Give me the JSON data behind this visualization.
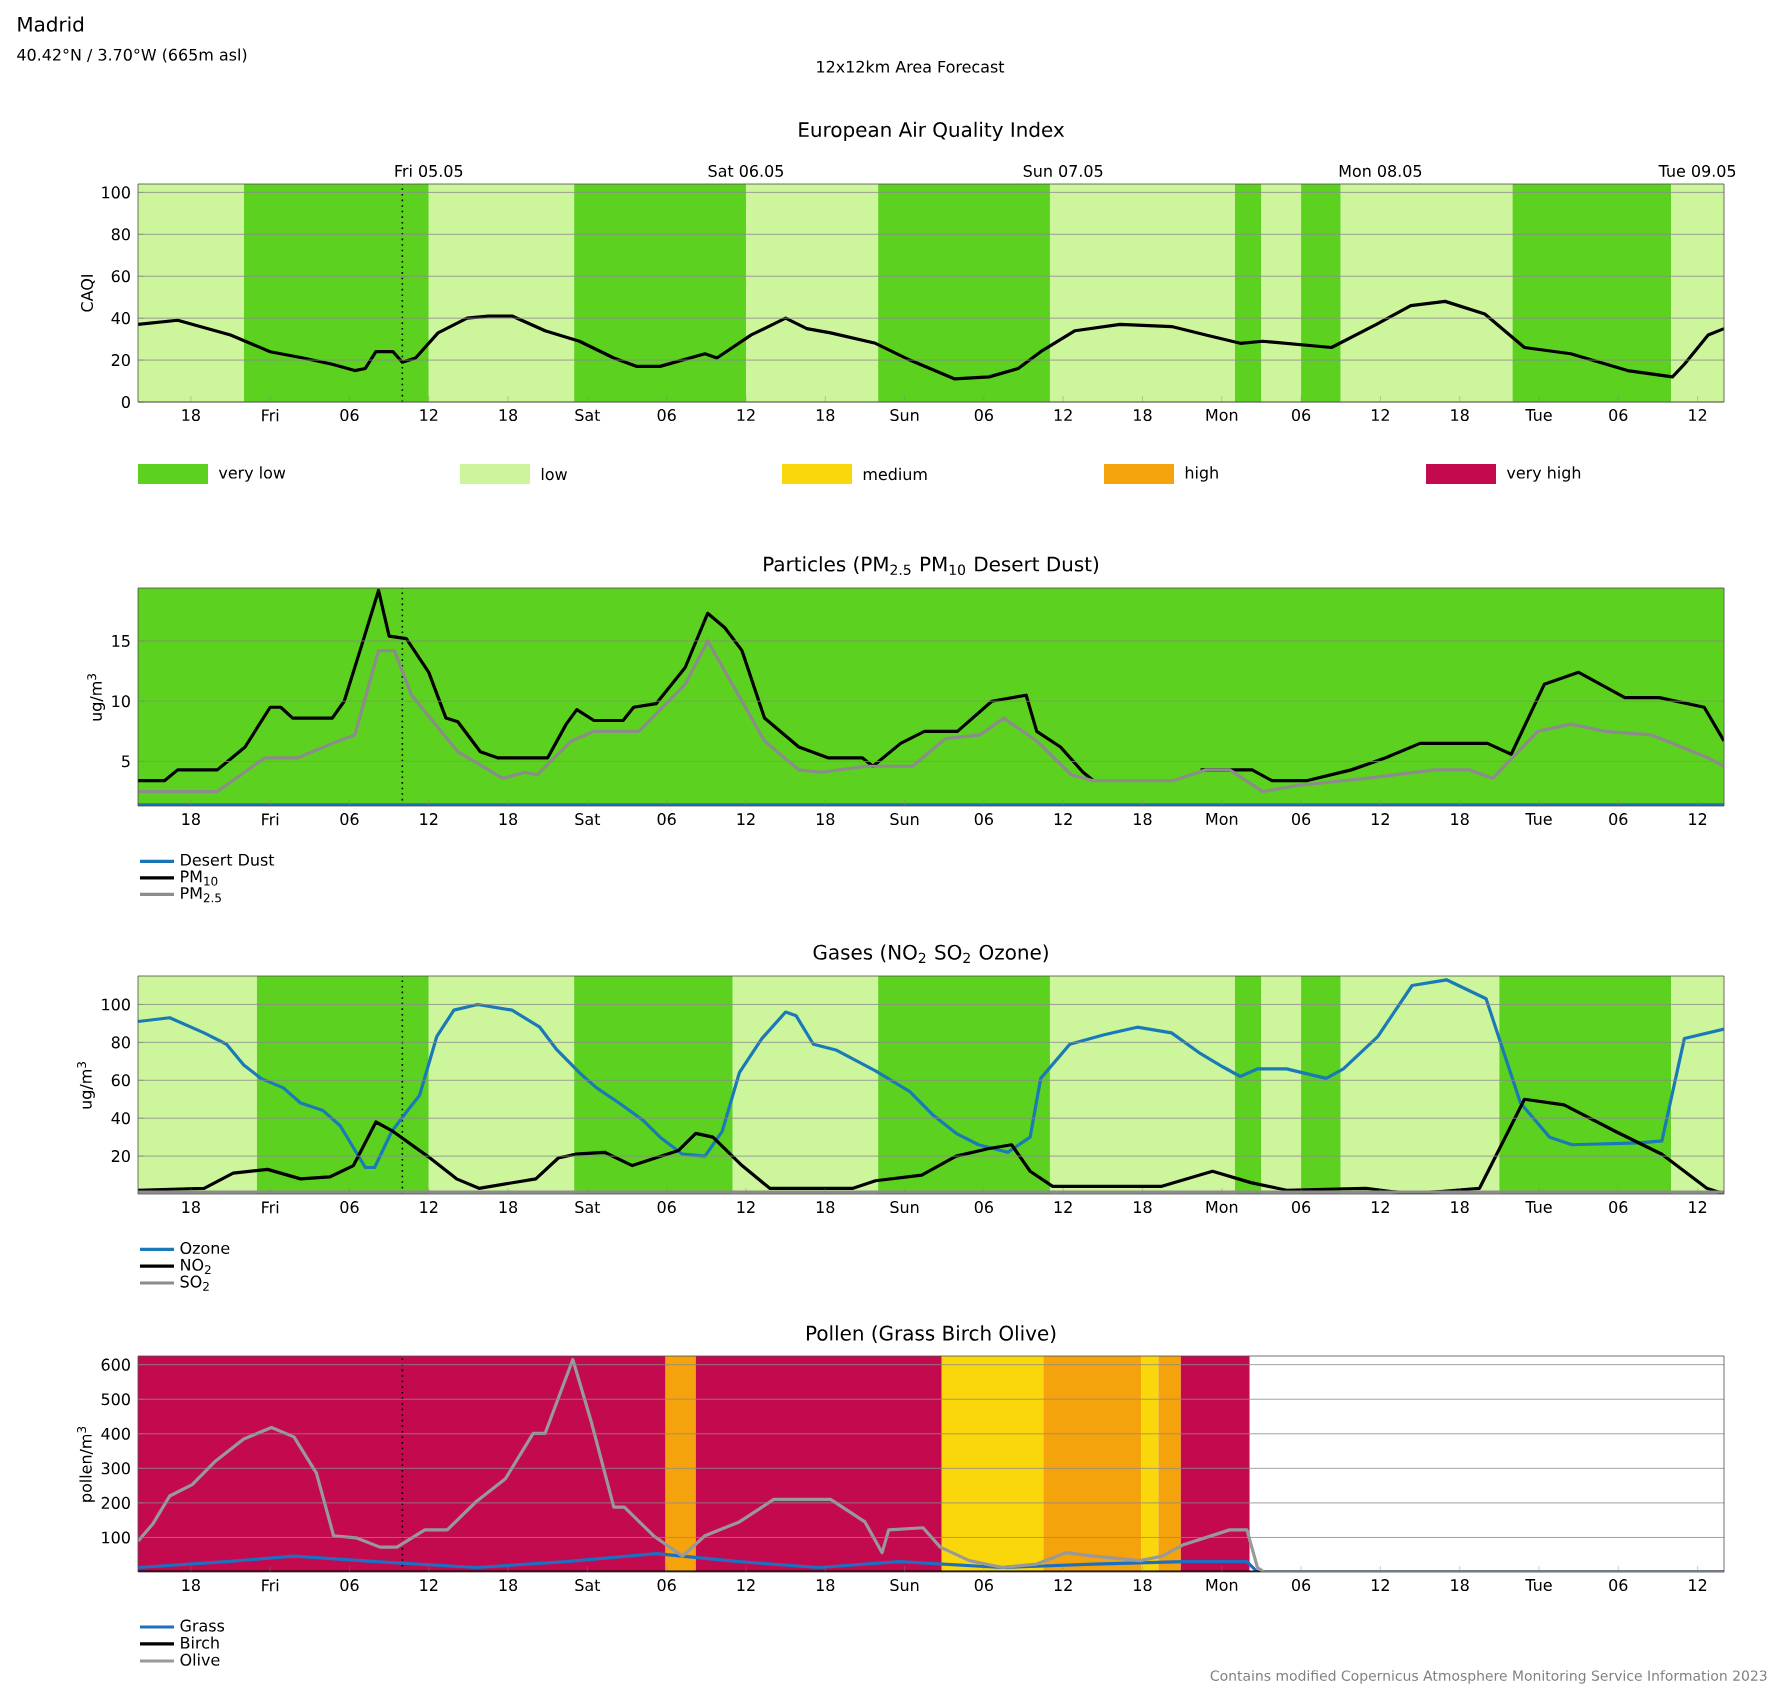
{
  "chart_data": [
    {
      "type": "line",
      "title": "European Air Quality Index",
      "ylabel": "CAQI",
      "annotations": [
        "Madrid",
        "40.42°N / 3.70°W (665m asl)",
        "12x12km Area Forecast"
      ],
      "xlim": [
        "2023-05-04T14:00",
        "2023-05-09T14:00"
      ],
      "ylim": [
        0,
        104
      ],
      "yticks": [
        0,
        20,
        40,
        60,
        80,
        100
      ],
      "xticks": [
        {
          "value": "2023-05-04T18:00",
          "label": "18"
        },
        {
          "value": "2023-05-05T00:00",
          "label": "Fri"
        },
        {
          "value": "2023-05-05T06:00",
          "label": "06"
        },
        {
          "value": "2023-05-05T12:00",
          "label": "12"
        },
        {
          "value": "2023-05-05T18:00",
          "label": "18"
        },
        {
          "value": "2023-05-06T00:00",
          "label": "Sat"
        },
        {
          "value": "2023-05-06T06:00",
          "label": "06"
        },
        {
          "value": "2023-05-06T12:00",
          "label": "12"
        },
        {
          "value": "2023-05-06T18:00",
          "label": "18"
        },
        {
          "value": "2023-05-07T00:00",
          "label": "Sun"
        },
        {
          "value": "2023-05-07T06:00",
          "label": "06"
        },
        {
          "value": "2023-05-07T12:00",
          "label": "12"
        },
        {
          "value": "2023-05-07T18:00",
          "label": "18"
        },
        {
          "value": "2023-05-08T00:00",
          "label": "Mon"
        },
        {
          "value": "2023-05-08T06:00",
          "label": "06"
        },
        {
          "value": "2023-05-08T12:00",
          "label": "12"
        },
        {
          "value": "2023-05-08T18:00",
          "label": "18"
        },
        {
          "value": "2023-05-09T00:00",
          "label": "Tue"
        },
        {
          "value": "2023-05-09T06:00",
          "label": "06"
        },
        {
          "value": "2023-05-09T12:00",
          "label": "12"
        }
      ],
      "x2lim": [
        "2023-05-04T14:00",
        "2023-05-09T14:00"
      ],
      "x2ticks": [
        {
          "value": "2023-05-05T12:00",
          "label": "Fri 05.05"
        },
        {
          "value": "2023-05-06T12:00",
          "label": "Sat 06.05"
        },
        {
          "value": "2023-05-07T12:00",
          "label": "Sun 07.05"
        },
        {
          "value": "2023-05-08T12:00",
          "label": "Mon 08.05"
        },
        {
          "value": "2023-05-09T12:00",
          "label": "Tue 09.05"
        }
      ],
      "grid": "y",
      "legend": "bottom",
      "bands": [
        {
          "axis": "x",
          "from": "2023-05-04T22:00",
          "to": "2023-05-05T12:00",
          "label": "very low",
          "color": "#5cd11f"
        },
        {
          "axis": "x",
          "from": "2023-05-04T14:00",
          "to": "2023-05-04T22:00",
          "label": "low",
          "color": "#cdf59b"
        },
        {
          "axis": "x",
          "from": "2023-05-05T12:00",
          "to": "2023-05-05T23:00",
          "color": "#cdf59b"
        },
        {
          "axis": "x",
          "from": "2023-05-05T23:00",
          "to": "2023-05-06T12:00",
          "color": "#5cd11f"
        },
        {
          "axis": "x",
          "from": "2023-05-06T12:00",
          "to": "2023-05-06T22:00",
          "color": "#cdf59b"
        },
        {
          "axis": "x",
          "from": "2023-05-06T22:00",
          "to": "2023-05-07T11:00",
          "color": "#5cd11f"
        },
        {
          "axis": "x",
          "from": "2023-05-07T11:00",
          "to": "2023-05-08T01:00",
          "color": "#cdf59b"
        },
        {
          "axis": "x",
          "from": "2023-05-08T01:00",
          "to": "2023-05-08T03:00",
          "color": "#5cd11f"
        },
        {
          "axis": "x",
          "from": "2023-05-08T03:00",
          "to": "2023-05-08T06:00",
          "color": "#cdf59b"
        },
        {
          "axis": "x",
          "from": "2023-05-08T06:00",
          "to": "2023-05-08T09:00",
          "color": "#5cd11f"
        },
        {
          "axis": "x",
          "from": "2023-05-08T09:00",
          "to": "2023-05-08T22:00",
          "color": "#cdf59b"
        },
        {
          "axis": "x",
          "from": "2023-05-08T22:00",
          "to": "2023-05-09T10:00",
          "color": "#5cd11f"
        },
        {
          "axis": "x",
          "from": "2023-05-09T10:00",
          "to": "2023-05-09T14:00",
          "color": "#cdf59b"
        }
      ],
      "ref_lines": [
        {
          "axis": "x",
          "value": "2023-05-05T10:00",
          "color": "#000000",
          "line_style": "dotted"
        }
      ],
      "series": [
        {
          "color": "#000000",
          "x": [
            "2023-05-04T14:00",
            "2023-05-04T17:00",
            "2023-05-04T21:00",
            "2023-05-05T00:00",
            "2023-05-05T02:30",
            "2023-05-05T04:42",
            "2023-05-05T06:24",
            "2023-05-05T07:12",
            "2023-05-05T08:00",
            "2023-05-05T09:18",
            "2023-05-05T10:00",
            "2023-05-05T11:00",
            "2023-05-05T12:42",
            "2023-05-05T14:54",
            "2023-05-05T16:30",
            "2023-05-05T18:18",
            "2023-05-05T20:48",
            "2023-05-05T23:24",
            "2023-05-06T02:00",
            "2023-05-06T03:42",
            "2023-05-06T05:30",
            "2023-05-06T08:54",
            "2023-05-06T09:48",
            "2023-05-06T12:24",
            "2023-05-06T15:00",
            "2023-05-06T16:36",
            "2023-05-06T18:24",
            "2023-05-06T21:48",
            "2023-05-07T00:24",
            "2023-05-07T03:48",
            "2023-05-07T06:24",
            "2023-05-07T08:36",
            "2023-05-07T10:18",
            "2023-05-07T12:54",
            "2023-05-07T16:18",
            "2023-05-07T20:12",
            "2023-05-07T22:48",
            "2023-05-08T01:24",
            "2023-05-08T03:06",
            "2023-05-08T08:18",
            "2023-05-08T11:42",
            "2023-05-08T14:18",
            "2023-05-08T16:54",
            "2023-05-08T19:54",
            "2023-05-08T22:54",
            "2023-05-09T02:24",
            "2023-05-09T06:42",
            "2023-05-09T10:06",
            "2023-05-09T11:00",
            "2023-05-09T12:48",
            "2023-05-09T14:00"
          ],
          "values": [
            37,
            39,
            32,
            24,
            21,
            18,
            15,
            16,
            24,
            24,
            19,
            21,
            33,
            40,
            41,
            41,
            34,
            29,
            21,
            17,
            17,
            23,
            21,
            32,
            40,
            35,
            33,
            28,
            20,
            11,
            12,
            16,
            24,
            34,
            37,
            36,
            32,
            28,
            29,
            26,
            37,
            46,
            48,
            42,
            26,
            23,
            15,
            12,
            18,
            32,
            35
          ]
        }
      ]
    },
    {
      "type": "line",
      "title": "Particles (PM$_{2.5}$ PM$_{10}$ Desert Dust)",
      "ylabel": "ug/m$^{3}$",
      "xlim": [
        "2023-05-04T14:00",
        "2023-05-09T14:00"
      ],
      "ylim": [
        1.3,
        19.4
      ],
      "yticks": [
        5,
        10,
        15
      ],
      "xticks": [
        {
          "value": "2023-05-04T18:00",
          "label": "18"
        },
        {
          "value": "2023-05-05T00:00",
          "label": "Fri"
        },
        {
          "value": "2023-05-05T06:00",
          "label": "06"
        },
        {
          "value": "2023-05-05T12:00",
          "label": "12"
        },
        {
          "value": "2023-05-05T18:00",
          "label": "18"
        },
        {
          "value": "2023-05-06T00:00",
          "label": "Sat"
        },
        {
          "value": "2023-05-06T06:00",
          "label": "06"
        },
        {
          "value": "2023-05-06T12:00",
          "label": "12"
        },
        {
          "value": "2023-05-06T18:00",
          "label": "18"
        },
        {
          "value": "2023-05-07T00:00",
          "label": "Sun"
        },
        {
          "value": "2023-05-07T06:00",
          "label": "06"
        },
        {
          "value": "2023-05-07T12:00",
          "label": "12"
        },
        {
          "value": "2023-05-07T18:00",
          "label": "18"
        },
        {
          "value": "2023-05-08T00:00",
          "label": "Mon"
        },
        {
          "value": "2023-05-08T06:00",
          "label": "06"
        },
        {
          "value": "2023-05-08T12:00",
          "label": "12"
        },
        {
          "value": "2023-05-08T18:00",
          "label": "18"
        },
        {
          "value": "2023-05-09T00:00",
          "label": "Tue"
        },
        {
          "value": "2023-05-09T06:00",
          "label": "06"
        },
        {
          "value": "2023-05-09T12:00",
          "label": "12"
        }
      ],
      "grid": "y",
      "legend": "bottom left",
      "bands": [
        {
          "axis": "x",
          "from": "2023-05-04T14:00",
          "to": "2023-05-09T14:00",
          "color": "#5cd11f"
        }
      ],
      "ref_lines": [
        {
          "axis": "x",
          "value": "2023-05-05T10:00",
          "color": "#000000",
          "line_style": "dotted"
        }
      ],
      "series": [
        {
          "name": "Desert Dust",
          "color": "#1a73b5",
          "x": [
            "2023-05-04T14:00",
            "2023-05-09T14:00"
          ],
          "values": [
            1.4,
            1.4
          ]
        },
        {
          "name": "PM$_{10}$",
          "color": "#000000",
          "x": [
            "2023-05-04T14:00",
            "2023-05-04T16:00",
            "2023-05-04T17:00",
            "2023-05-04T20:00",
            "2023-05-04T22:06",
            "2023-05-05T00:00",
            "2023-05-05T00:48",
            "2023-05-05T01:42",
            "2023-05-05T04:42",
            "2023-05-05T05:36",
            "2023-05-05T06:48",
            "2023-05-05T08:12",
            "2023-05-05T09:00",
            "2023-05-05T10:18",
            "2023-05-05T12:00",
            "2023-05-05T13:18",
            "2023-05-05T14:12",
            "2023-05-05T15:54",
            "2023-05-05T17:12",
            "2023-05-05T21:00",
            "2023-05-05T22:24",
            "2023-05-05T23:12",
            "2023-05-06T00:30",
            "2023-05-06T02:42",
            "2023-05-06T03:30",
            "2023-05-06T05:12",
            "2023-05-06T07:24",
            "2023-05-06T09:06",
            "2023-05-06T10:24",
            "2023-05-06T11:42",
            "2023-05-06T13:24",
            "2023-05-06T16:00",
            "2023-05-06T18:12",
            "2023-05-06T20:48",
            "2023-05-06T21:36",
            "2023-05-06T23:42",
            "2023-05-07T01:30",
            "2023-05-07T04:00",
            "2023-05-07T06:36",
            "2023-05-07T09:12",
            "2023-05-07T10:00",
            "2023-05-07T11:48",
            "2023-05-07T13:30",
            "2023-05-07T14:18",
            "2023-05-07T17:00",
            "2023-05-07T22:24",
            "2023-05-08T01:00",
            "2023-05-08T02:18",
            "2023-05-08T03:48",
            "2023-05-08T06:24",
            "2023-05-08T09:48",
            "2023-05-08T12:24",
            "2023-05-08T15:00",
            "2023-05-08T20:06",
            "2023-05-08T21:54",
            "2023-05-09T00:24",
            "2023-05-09T03:00",
            "2023-05-09T06:30",
            "2023-05-09T09:06",
            "2023-05-09T12:30",
            "2023-05-09T14:00"
          ],
          "values": [
            3.4,
            3.4,
            4.3,
            4.3,
            6.2,
            9.5,
            9.5,
            8.6,
            8.6,
            10,
            14.2,
            19.2,
            15.4,
            15.2,
            12.4,
            8.6,
            8.3,
            5.8,
            5.3,
            5.3,
            8.1,
            9.3,
            8.4,
            8.4,
            9.5,
            9.8,
            12.8,
            17.3,
            16.1,
            14.2,
            8.6,
            6.2,
            5.3,
            5.3,
            4.6,
            6.5,
            7.5,
            7.5,
            10,
            10.5,
            7.5,
            6.2,
            4.1,
            3.4,
            null,
            4.3,
            4.3,
            4.3,
            3.4,
            3.4,
            4.3,
            5.3,
            6.5,
            6.5,
            5.6,
            11.4,
            12.4,
            10.3,
            10.3,
            9.5,
            6.7
          ]
        },
        {
          "name": "PM$_{2.5}$",
          "color": "#8c8c8c",
          "x": [
            "2023-05-04T14:00",
            "2023-05-04T20:00",
            "2023-05-04T23:36",
            "2023-05-05T02:06",
            "2023-05-05T04:42",
            "2023-05-05T06:24",
            "2023-05-05T08:12",
            "2023-05-05T09:24",
            "2023-05-05T10:42",
            "2023-05-05T14:12",
            "2023-05-05T17:36",
            "2023-05-05T19:18",
            "2023-05-05T20:12",
            "2023-05-05T22:48",
            "2023-05-06T00:30",
            "2023-05-06T03:54",
            "2023-05-06T07:24",
            "2023-05-06T09:06",
            "2023-05-06T11:42",
            "2023-05-06T13:24",
            "2023-05-06T16:00",
            "2023-05-06T17:42",
            "2023-05-06T21:06",
            "2023-05-07T00:36",
            "2023-05-07T03:06",
            "2023-05-07T05:42",
            "2023-05-07T07:30",
            "2023-05-07T10:00",
            "2023-05-07T12:36",
            "2023-05-07T14:18",
            "2023-05-07T20:18",
            "2023-05-07T22:48",
            "2023-05-08T00:36",
            "2023-05-08T03:06",
            "2023-05-08T05:42",
            "2023-05-08T10:54",
            "2023-05-08T16:06",
            "2023-05-08T18:42",
            "2023-05-08T20:30",
            "2023-05-08T23:54",
            "2023-05-09T02:24",
            "2023-05-09T05:00",
            "2023-05-09T08:30",
            "2023-05-09T12:48",
            "2023-05-09T14:00"
          ],
          "values": [
            2.5,
            2.5,
            5.3,
            5.3,
            6.5,
            7.2,
            14.2,
            14.2,
            10.5,
            5.8,
            3.6,
            4.1,
            3.9,
            6.7,
            7.5,
            7.5,
            11.4,
            15,
            10,
            6.7,
            4.3,
            4.1,
            4.6,
            4.6,
            6.9,
            7.2,
            8.6,
            6.7,
            3.9,
            3.4,
            3.4,
            4.3,
            4.3,
            2.5,
            3,
            3.6,
            4.3,
            4.3,
            3.6,
            7.5,
            8.1,
            7.5,
            7.2,
            5.3,
            4.6
          ]
        }
      ]
    },
    {
      "type": "line",
      "title": "Gases (NO$_{2}$ SO$_{2}$ Ozone)",
      "ylabel": "ug/m$^{3}$",
      "xlim": [
        "2023-05-04T14:00",
        "2023-05-09T14:00"
      ],
      "ylim": [
        0,
        115
      ],
      "yticks": [
        20,
        40,
        60,
        80,
        100
      ],
      "xticks": [
        {
          "value": "2023-05-04T18:00",
          "label": "18"
        },
        {
          "value": "2023-05-05T00:00",
          "label": "Fri"
        },
        {
          "value": "2023-05-05T06:00",
          "label": "06"
        },
        {
          "value": "2023-05-05T12:00",
          "label": "12"
        },
        {
          "value": "2023-05-05T18:00",
          "label": "18"
        },
        {
          "value": "2023-05-06T00:00",
          "label": "Sat"
        },
        {
          "value": "2023-05-06T06:00",
          "label": "06"
        },
        {
          "value": "2023-05-06T12:00",
          "label": "12"
        },
        {
          "value": "2023-05-06T18:00",
          "label": "18"
        },
        {
          "value": "2023-05-07T00:00",
          "label": "Sun"
        },
        {
          "value": "2023-05-07T06:00",
          "label": "06"
        },
        {
          "value": "2023-05-07T12:00",
          "label": "12"
        },
        {
          "value": "2023-05-07T18:00",
          "label": "18"
        },
        {
          "value": "2023-05-08T00:00",
          "label": "Mon"
        },
        {
          "value": "2023-05-08T06:00",
          "label": "06"
        },
        {
          "value": "2023-05-08T12:00",
          "label": "12"
        },
        {
          "value": "2023-05-08T18:00",
          "label": "18"
        },
        {
          "value": "2023-05-09T00:00",
          "label": "Tue"
        },
        {
          "value": "2023-05-09T06:00",
          "label": "06"
        },
        {
          "value": "2023-05-09T12:00",
          "label": "12"
        }
      ],
      "grid": "y",
      "legend": "bottom left",
      "bands": [
        {
          "axis": "x",
          "from": "2023-05-04T14:00",
          "to": "2023-05-04T23:00",
          "color": "#cdf59b"
        },
        {
          "axis": "x",
          "from": "2023-05-04T23:00",
          "to": "2023-05-05T12:00",
          "color": "#5cd11f"
        },
        {
          "axis": "x",
          "from": "2023-05-05T12:00",
          "to": "2023-05-05T23:00",
          "color": "#cdf59b"
        },
        {
          "axis": "x",
          "from": "2023-05-05T23:00",
          "to": "2023-05-06T11:00",
          "color": "#5cd11f"
        },
        {
          "axis": "x",
          "from": "2023-05-06T11:00",
          "to": "2023-05-06T22:00",
          "color": "#cdf59b"
        },
        {
          "axis": "x",
          "from": "2023-05-06T22:00",
          "to": "2023-05-07T11:00",
          "color": "#5cd11f"
        },
        {
          "axis": "x",
          "from": "2023-05-07T11:00",
          "to": "2023-05-08T01:00",
          "color": "#cdf59b"
        },
        {
          "axis": "x",
          "from": "2023-05-08T01:00",
          "to": "2023-05-08T03:00",
          "color": "#5cd11f"
        },
        {
          "axis": "x",
          "from": "2023-05-08T03:00",
          "to": "2023-05-08T06:00",
          "color": "#cdf59b"
        },
        {
          "axis": "x",
          "from": "2023-05-08T06:00",
          "to": "2023-05-08T09:00",
          "color": "#5cd11f"
        },
        {
          "axis": "x",
          "from": "2023-05-08T09:00",
          "to": "2023-05-08T21:00",
          "color": "#cdf59b"
        },
        {
          "axis": "x",
          "from": "2023-05-08T21:00",
          "to": "2023-05-09T10:00",
          "color": "#5cd11f"
        },
        {
          "axis": "x",
          "from": "2023-05-09T10:00",
          "to": "2023-05-09T14:00",
          "color": "#cdf59b"
        }
      ],
      "ref_lines": [
        {
          "axis": "x",
          "value": "2023-05-05T10:00",
          "color": "#000000",
          "line_style": "dotted"
        }
      ],
      "series": [
        {
          "name": "Ozone",
          "color": "#1a7ab8",
          "x": [
            "2023-05-04T14:00",
            "2023-05-04T16:24",
            "2023-05-04T19:00",
            "2023-05-04T20:42",
            "2023-05-04T22:00",
            "2023-05-04T23:18",
            "2023-05-05T01:00",
            "2023-05-05T02:18",
            "2023-05-05T04:00",
            "2023-05-05T05:18",
            "2023-05-05T06:36",
            "2023-05-05T07:12",
            "2023-05-05T07:54",
            "2023-05-05T09:12",
            "2023-05-05T10:30",
            "2023-05-05T11:18",
            "2023-05-05T12:36",
            "2023-05-05T13:54",
            "2023-05-05T15:42",
            "2023-05-05T18:18",
            "2023-05-05T20:24",
            "2023-05-05T21:42",
            "2023-05-05T23:24",
            "2023-05-06T00:42",
            "2023-05-06T02:24",
            "2023-05-06T04:12",
            "2023-05-06T05:30",
            "2023-05-06T07:12",
            "2023-05-06T08:54",
            "2023-05-06T10:12",
            "2023-05-06T11:30",
            "2023-05-06T13:12",
            "2023-05-06T15:00",
            "2023-05-06T15:48",
            "2023-05-06T17:06",
            "2023-05-06T18:48",
            "2023-05-06T21:48",
            "2023-05-07T00:24",
            "2023-05-07T02:06",
            "2023-05-07T03:54",
            "2023-05-07T05:36",
            "2023-05-07T07:48",
            "2023-05-07T09:30",
            "2023-05-07T10:18",
            "2023-05-07T12:30",
            "2023-05-07T15:06",
            "2023-05-07T17:36",
            "2023-05-07T20:12",
            "2023-05-07T22:24",
            "2023-05-08T00:06",
            "2023-05-08T01:24",
            "2023-05-08T02:42",
            "2023-05-08T04:54",
            "2023-05-08T07:54",
            "2023-05-08T09:12",
            "2023-05-08T11:48",
            "2023-05-08T14:24",
            "2023-05-08T17:00",
            "2023-05-08T20:00",
            "2023-05-08T22:36",
            "2023-05-09T00:48",
            "2023-05-09T02:30",
            "2023-05-09T07:36",
            "2023-05-09T09:18",
            "2023-05-09T11:00",
            "2023-05-09T14:00"
          ],
          "values": [
            91,
            93,
            85,
            79,
            68,
            61,
            56,
            48,
            44,
            36,
            21,
            14,
            14,
            33,
            45,
            52,
            83,
            97,
            100,
            97,
            88,
            76,
            64,
            56,
            48,
            39,
            30,
            21,
            20,
            33,
            64,
            82,
            96,
            94,
            79,
            76,
            65,
            54,
            42,
            32,
            26,
            22,
            30,
            61,
            79,
            84,
            88,
            85,
            74,
            67,
            62,
            66,
            66,
            61,
            66,
            83,
            110,
            113,
            103,
            48,
            30,
            26,
            27,
            28,
            82,
            87
          ]
        },
        {
          "name": "NO$_{2}$",
          "color": "#000000",
          "x": [
            "2023-05-04T14:00",
            "2023-05-04T19:00",
            "2023-05-04T21:12",
            "2023-05-04T23:48",
            "2023-05-05T02:18",
            "2023-05-05T04:30",
            "2023-05-05T06:18",
            "2023-05-05T08:00",
            "2023-05-05T09:18",
            "2023-05-05T11:54",
            "2023-05-05T14:06",
            "2023-05-05T15:48",
            "2023-05-05T20:06",
            "2023-05-05T21:48",
            "2023-05-05T23:06",
            "2023-05-06T01:18",
            "2023-05-06T03:24",
            "2023-05-06T06:54",
            "2023-05-06T08:12",
            "2023-05-06T09:30",
            "2023-05-06T11:42",
            "2023-05-06T13:48",
            "2023-05-06T20:06",
            "2023-05-06T21:48",
            "2023-05-07T01:18",
            "2023-05-07T03:54",
            "2023-05-07T06:24",
            "2023-05-07T08:06",
            "2023-05-07T09:30",
            "2023-05-07T11:12",
            "2023-05-07T19:24",
            "2023-05-07T23:18",
            "2023-05-08T02:12",
            "2023-05-08T04:54",
            "2023-05-08T10:54",
            "2023-05-08T14:18",
            "2023-05-08T19:30",
            "2023-05-08T22:54",
            "2023-05-09T01:54",
            "2023-05-09T05:48",
            "2023-05-09T09:18",
            "2023-05-09T12:42",
            "2023-05-09T14:00"
          ],
          "values": [
            2,
            3,
            11,
            13,
            8,
            9,
            15,
            38,
            33,
            20,
            8,
            3,
            8,
            19,
            21,
            22,
            15,
            23,
            32,
            30,
            15,
            3,
            3,
            7,
            10,
            20,
            24,
            26,
            12,
            4,
            4,
            12,
            6,
            2,
            3,
            0,
            3,
            50,
            47,
            33,
            21,
            3,
            0
          ]
        },
        {
          "name": "SO$_{2}$",
          "color": "#8c8c8c",
          "x": [
            "2023-05-04T14:00",
            "2023-05-09T14:00"
          ],
          "values": [
            1,
            1
          ]
        }
      ]
    },
    {
      "type": "line",
      "title": "Pollen (Grass Birch Olive)",
      "ylabel": "pollen/m$^{3}$",
      "annotations": [
        "Contains modified Copernicus Atmosphere Monitoring Service Information 2023"
      ],
      "xlim": [
        "2023-05-04T14:00",
        "2023-05-09T14:00"
      ],
      "ylim": [
        0,
        625
      ],
      "yticks": [
        100,
        200,
        300,
        400,
        500,
        600
      ],
      "xticks": [
        {
          "value": "2023-05-04T18:00",
          "label": "18"
        },
        {
          "value": "2023-05-05T00:00",
          "label": "Fri"
        },
        {
          "value": "2023-05-05T06:00",
          "label": "06"
        },
        {
          "value": "2023-05-05T12:00",
          "label": "12"
        },
        {
          "value": "2023-05-05T18:00",
          "label": "18"
        },
        {
          "value": "2023-05-06T00:00",
          "label": "Sat"
        },
        {
          "value": "2023-05-06T06:00",
          "label": "06"
        },
        {
          "value": "2023-05-06T12:00",
          "label": "12"
        },
        {
          "value": "2023-05-06T18:00",
          "label": "18"
        },
        {
          "value": "2023-05-07T00:00",
          "label": "Sun"
        },
        {
          "value": "2023-05-07T06:00",
          "label": "06"
        },
        {
          "value": "2023-05-07T12:00",
          "label": "12"
        },
        {
          "value": "2023-05-07T18:00",
          "label": "18"
        },
        {
          "value": "2023-05-08T00:00",
          "label": "Mon"
        },
        {
          "value": "2023-05-08T06:00",
          "label": "06"
        },
        {
          "value": "2023-05-08T12:00",
          "label": "12"
        },
        {
          "value": "2023-05-08T18:00",
          "label": "18"
        },
        {
          "value": "2023-05-09T00:00",
          "label": "Tue"
        },
        {
          "value": "2023-05-09T06:00",
          "label": "06"
        },
        {
          "value": "2023-05-09T12:00",
          "label": "12"
        }
      ],
      "grid": "y",
      "legend": "bottom left",
      "bands": [
        {
          "axis": "x",
          "from": "2023-05-07T02:48",
          "to": "2023-05-07T10:30",
          "label": "medium",
          "color": "#fad70a"
        },
        {
          "axis": "x",
          "from": "2023-05-07T17:54",
          "to": "2023-05-07T19:12",
          "color": "#fad70a"
        },
        {
          "axis": "x",
          "from": "2023-05-06T05:54",
          "to": "2023-05-06T08:12",
          "label": "high",
          "color": "#f5a30c"
        },
        {
          "axis": "x",
          "from": "2023-05-07T10:30",
          "to": "2023-05-07T17:54",
          "color": "#f5a30c"
        },
        {
          "axis": "x",
          "from": "2023-05-07T19:12",
          "to": "2023-05-07T20:54",
          "color": "#f5a30c"
        },
        {
          "axis": "x",
          "from": "2023-05-04T14:00",
          "to": "2023-05-06T05:54",
          "label": "very high",
          "color": "#c30a4e"
        },
        {
          "axis": "x",
          "from": "2023-05-06T08:12",
          "to": "2023-05-07T02:48",
          "color": "#c30a4e"
        },
        {
          "axis": "x",
          "from": "2023-05-07T20:54",
          "to": "2023-05-08T02:06",
          "color": "#c30a4e"
        }
      ],
      "ref_lines": [
        {
          "axis": "x",
          "value": "2023-05-05T10:00",
          "color": "#000000",
          "line_style": "dotted"
        }
      ],
      "series": [
        {
          "name": "Grass",
          "color": "#1f6fc0",
          "x": [
            "2023-05-04T14:00",
            "2023-05-04T20:42",
            "2023-05-05T01:48",
            "2023-05-05T08:00",
            "2023-05-05T15:36",
            "2023-05-05T22:24",
            "2023-05-06T05:12",
            "2023-05-06T11:30",
            "2023-05-06T17:30",
            "2023-05-06T23:36",
            "2023-05-07T07:24",
            "2023-05-07T14:18",
            "2023-05-07T21:06",
            "2023-05-08T01:54",
            "2023-05-08T02:42",
            "2023-05-09T14:00"
          ],
          "values": [
            13,
            30,
            46,
            30,
            13,
            30,
            53,
            30,
            13,
            30,
            13,
            23,
            30,
            30,
            0,
            0
          ]
        },
        {
          "name": "Birch",
          "color": "#000000",
          "x": [
            "2023-05-04T14:00",
            "2023-05-09T14:00"
          ],
          "values": [
            0,
            0
          ]
        },
        {
          "name": "Olive",
          "color": "#999999",
          "x": [
            "2023-05-04T14:00",
            "2023-05-04T15:06",
            "2023-05-04T16:24",
            "2023-05-04T18:06",
            "2023-05-04T19:48",
            "2023-05-04T22:00",
            "2023-05-05T00:06",
            "2023-05-05T01:48",
            "2023-05-05T03:30",
            "2023-05-05T04:48",
            "2023-05-05T06:30",
            "2023-05-05T08:18",
            "2023-05-05T09:36",
            "2023-05-05T11:42",
            "2023-05-05T13:24",
            "2023-05-05T15:36",
            "2023-05-05T17:48",
            "2023-05-05T19:54",
            "2023-05-05T20:48",
            "2023-05-05T22:54",
            "2023-05-06T00:18",
            "2023-05-06T02:00",
            "2023-05-06T02:48",
            "2023-05-06T05:00",
            "2023-05-06T07:12",
            "2023-05-06T08:54",
            "2023-05-06T11:30",
            "2023-05-06T14:06",
            "2023-05-06T15:48",
            "2023-05-06T18:24",
            "2023-05-06T21:00",
            "2023-05-06T22:18",
            "2023-05-06T22:48",
            "2023-05-07T01:24",
            "2023-05-07T02:42",
            "2023-05-07T04:54",
            "2023-05-07T07:24",
            "2023-05-07T10:00",
            "2023-05-07T12:12",
            "2023-05-07T14:18",
            "2023-05-07T17:48",
            "2023-05-07T19:30",
            "2023-05-07T21:06",
            "2023-05-08T00:36",
            "2023-05-08T01:54",
            "2023-05-08T02:42",
            "2023-05-08T03:12",
            "2023-05-09T14:00"
          ],
          "values": [
            89,
            138,
            220,
            253,
            319,
            385,
            418,
            391,
            286,
            105,
            99,
            72,
            72,
            122,
            122,
            204,
            270,
            401,
            401,
            615,
            434,
            188,
            188,
            105,
            46,
            105,
            145,
            210,
            210,
            210,
            145,
            56,
            122,
            128,
            72,
            33,
            13,
            23,
            56,
            46,
            33,
            46,
            79,
            122,
            122,
            13,
            0,
            0
          ]
        }
      ]
    }
  ]
}
